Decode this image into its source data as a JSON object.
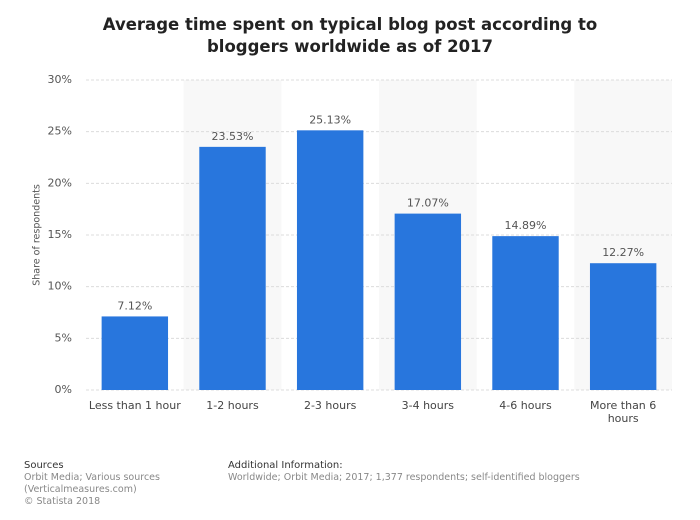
{
  "chart_data": {
    "type": "bar",
    "title": "Average time spent on typical blog post according to bloggers worldwide as of 2017",
    "y_label": "Share of respondents",
    "categories": [
      "Less than 1 hour",
      "1-2 hours",
      "2-3 hours",
      "3-4 hours",
      "4-6 hours",
      "More than 6 hours"
    ],
    "values": [
      7.12,
      23.53,
      25.13,
      17.07,
      14.89,
      12.27
    ],
    "value_labels": [
      "7.12%",
      "23.53%",
      "25.13%",
      "17.07%",
      "14.89%",
      "12.27%"
    ],
    "color": "#2876dd",
    "ylim": [
      0,
      30
    ],
    "yticks": [
      {
        "value": 0,
        "label": "0%"
      },
      {
        "value": 5,
        "label": "5%"
      },
      {
        "value": 10,
        "label": "10%"
      },
      {
        "value": 15,
        "label": "15%"
      },
      {
        "value": 20,
        "label": "20%"
      },
      {
        "value": 25,
        "label": "25%"
      },
      {
        "value": 30,
        "label": "30%"
      }
    ],
    "grid": true
  },
  "footer": {
    "sources_title": "Sources",
    "sources_lines": [
      "Orbit Media; Various sources",
      "(Verticalmeasures.com)",
      "© Statista 2018"
    ],
    "info_title": "Additional Information:",
    "info_text": "Worldwide; Orbit Media; 2017; 1,377 respondents; self-identified bloggers"
  }
}
